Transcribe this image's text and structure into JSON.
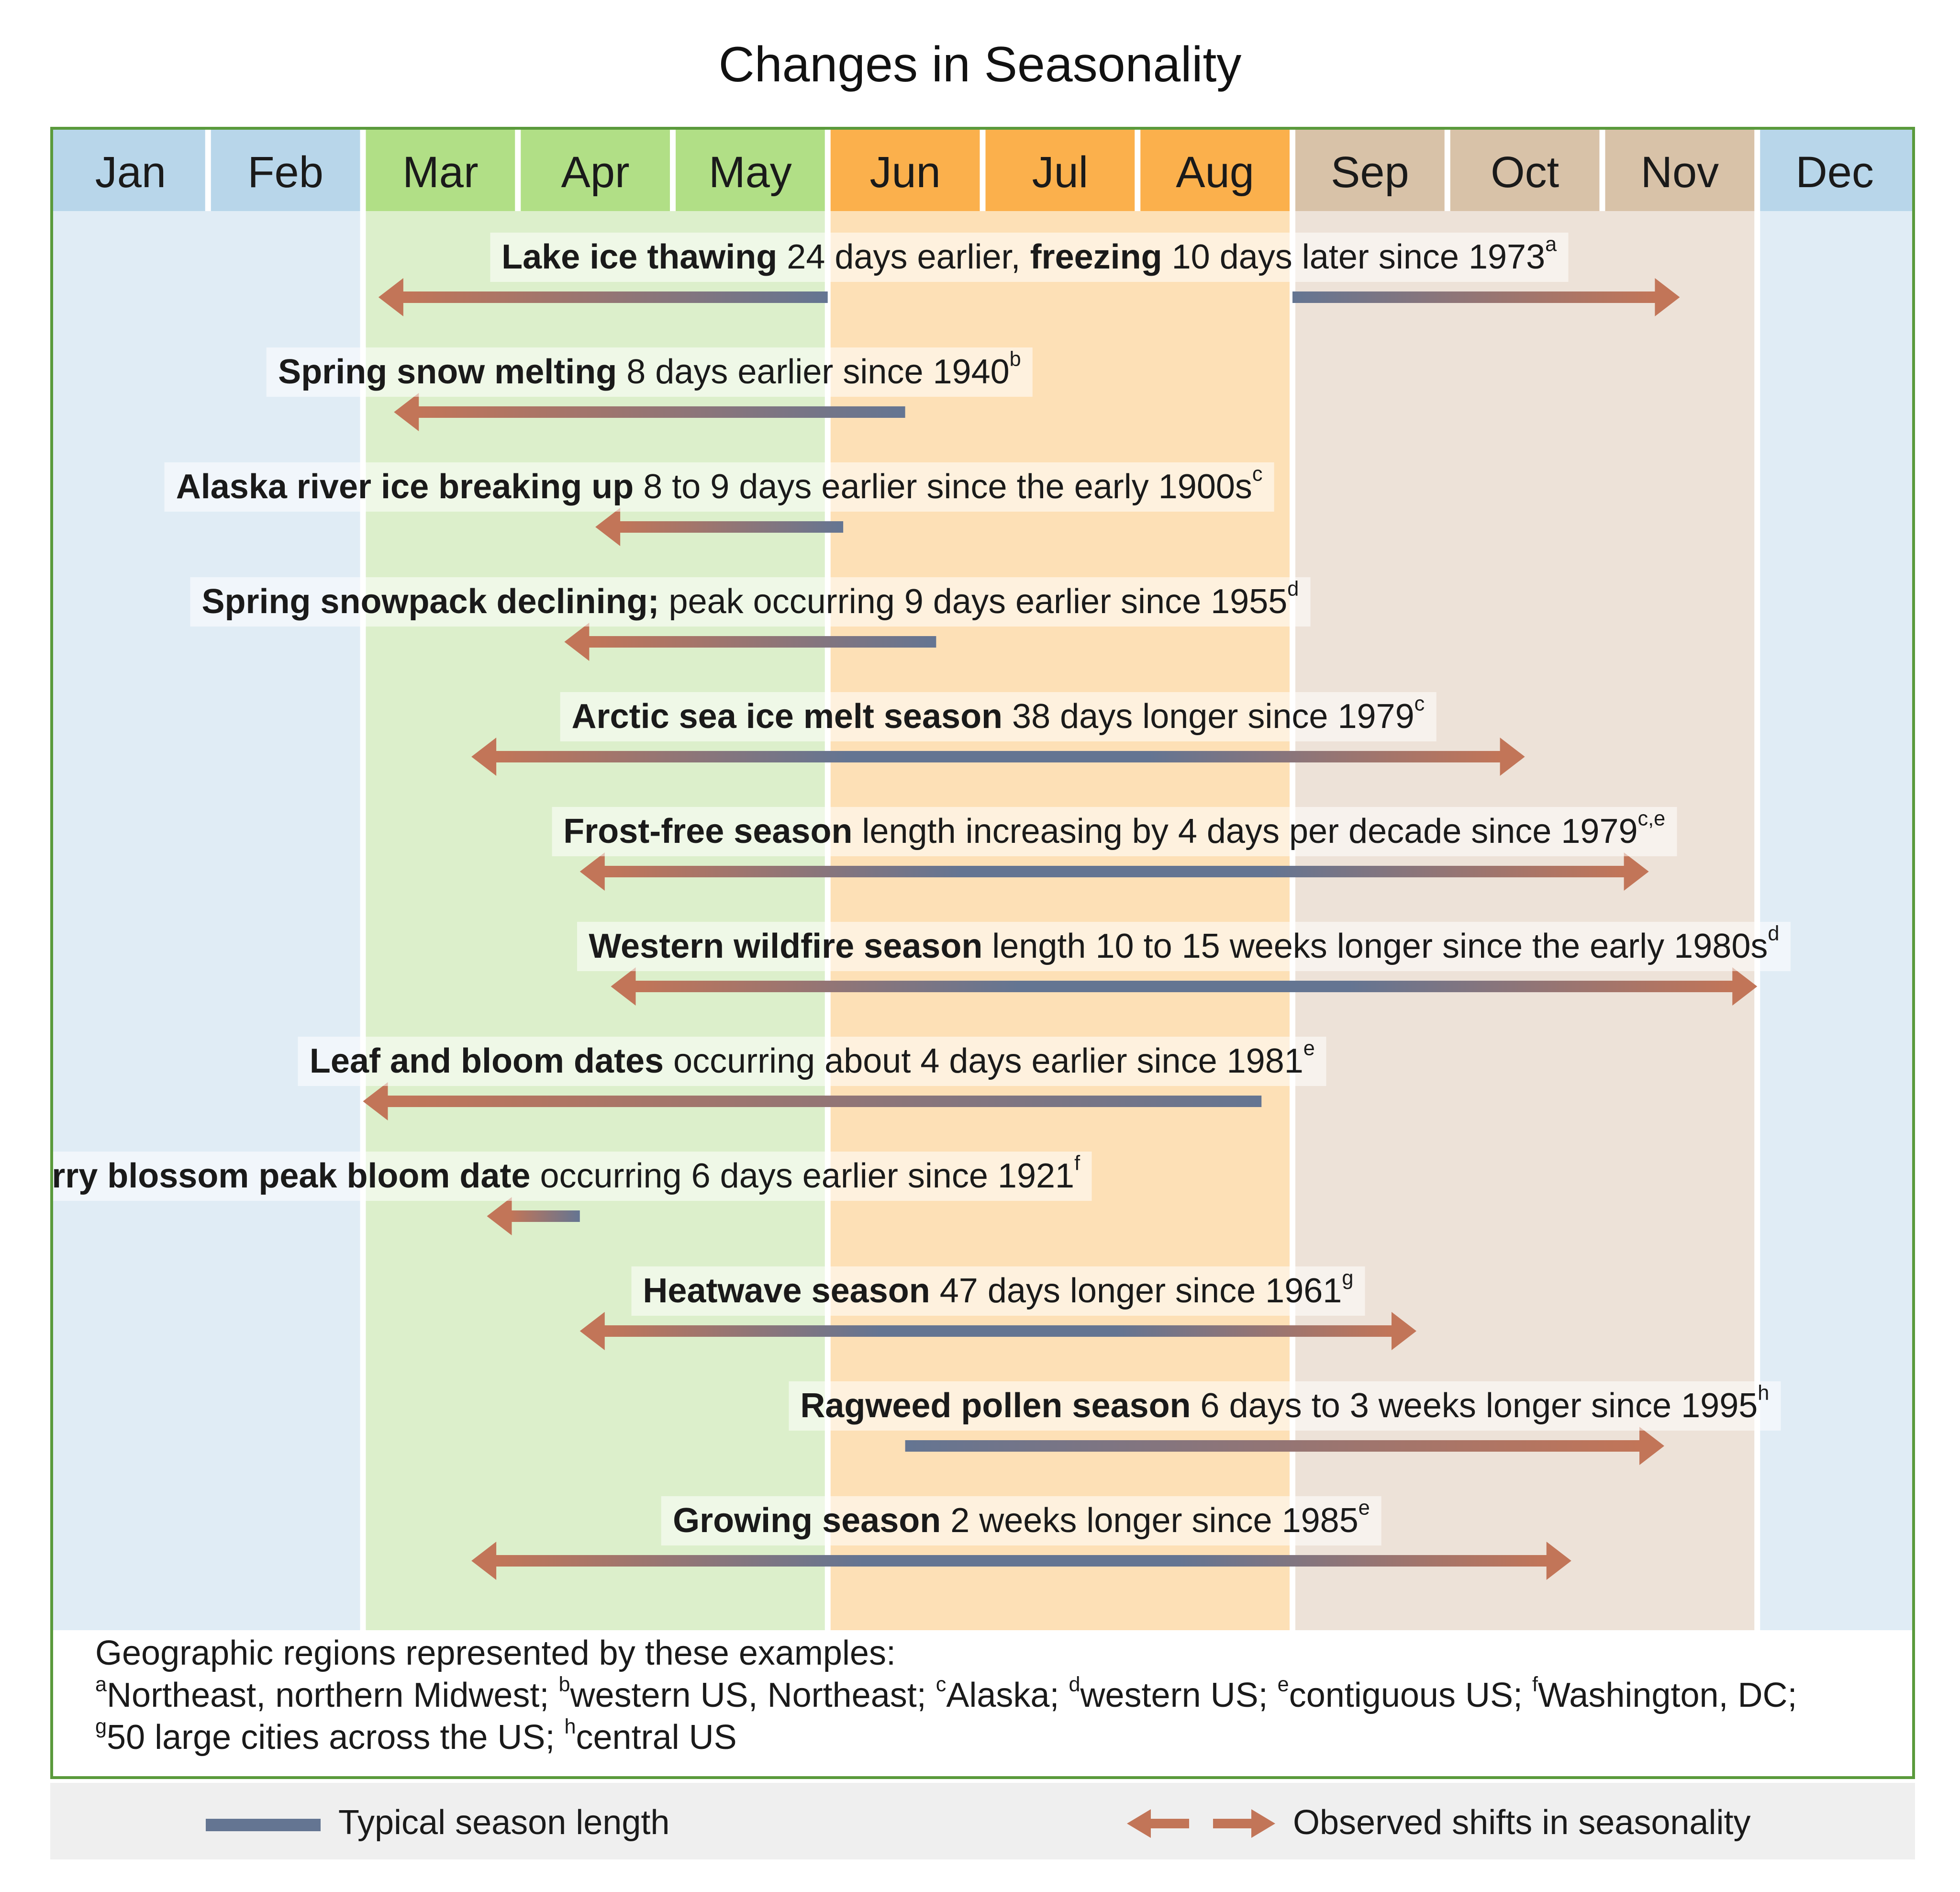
{
  "title": "Changes in Seasonality",
  "months": [
    {
      "name": "Jan",
      "season": "winter"
    },
    {
      "name": "Feb",
      "season": "winter"
    },
    {
      "name": "Mar",
      "season": "spring"
    },
    {
      "name": "Apr",
      "season": "spring"
    },
    {
      "name": "May",
      "season": "spring"
    },
    {
      "name": "Jun",
      "season": "summer"
    },
    {
      "name": "Jul",
      "season": "summer"
    },
    {
      "name": "Aug",
      "season": "summer"
    },
    {
      "name": "Sep",
      "season": "fall"
    },
    {
      "name": "Oct",
      "season": "fall"
    },
    {
      "name": "Nov",
      "season": "fall"
    },
    {
      "name": "Dec",
      "season": "winter"
    }
  ],
  "colors": {
    "frame": "#5a9a3c",
    "winter_header": "#b8d6ea",
    "winter_band": "#e0ecf5",
    "spring_header": "#b1df86",
    "spring_band": "#dcefcb",
    "summer_header": "#fbb04c",
    "summer_band": "#fde0b6",
    "fall_header": "#d8c2a8",
    "fall_band": "#ede2d8",
    "typical": "#647592",
    "shift": "#c27558"
  },
  "rows": [
    {
      "bold": "Lake ice thawing",
      "text": " 24 days earlier, ",
      "bold2": "freezing",
      "text2": " 10 days later since 1973",
      "sup": "a",
      "segments": [
        {
          "from": 2.1,
          "to": 5.0,
          "head": "left"
        },
        {
          "from": 8.0,
          "to": 10.5,
          "head": "right"
        }
      ]
    },
    {
      "bold": "Spring snow melting",
      "text": " 8 days earlier since 1940",
      "sup": "b",
      "segments": [
        {
          "from": 2.2,
          "to": 5.5,
          "head": "left"
        }
      ]
    },
    {
      "bold": "Alaska river ice breaking up",
      "text": " 8 to 9 days earlier since the early 1900s",
      "sup": "c",
      "segments": [
        {
          "from": 3.5,
          "to": 5.1,
          "head": "left"
        }
      ]
    },
    {
      "bold": "Spring snowpack declining;",
      "text": " peak occurring 9 days earlier since 1955",
      "sup": "d",
      "segments": [
        {
          "from": 3.3,
          "to": 5.7,
          "head": "left"
        }
      ]
    },
    {
      "bold": "Arctic sea ice melt season",
      "text": " 38 days longer since 1979",
      "sup": "c",
      "segments": [
        {
          "from": 2.7,
          "to": 9.5,
          "head": "both"
        }
      ]
    },
    {
      "bold": "Frost-free season",
      "text": " length increasing by 4 days per decade since 1979",
      "sup": "c,e",
      "segments": [
        {
          "from": 3.4,
          "to": 10.3,
          "head": "both"
        }
      ]
    },
    {
      "bold": "Western wildfire season",
      "text": " length 10 to 15 weeks longer since the early 1980s",
      "sup": "d",
      "segments": [
        {
          "from": 3.6,
          "to": 11.0,
          "head": "both"
        }
      ]
    },
    {
      "bold": "Leaf and bloom dates",
      "text": " occurring about 4 days earlier since 1981",
      "sup": "e",
      "segments": [
        {
          "from": 2.0,
          "to": 7.8,
          "head": "left"
        }
      ]
    },
    {
      "bold": "Cherry blossom peak bloom date",
      "text": " occurring 6 days earlier since 1921",
      "sup": "f",
      "segments": [
        {
          "from": 2.8,
          "to": 3.4,
          "head": "left"
        }
      ]
    },
    {
      "bold": "Heatwave season",
      "text": " 47 days longer since 1961",
      "sup": "g",
      "segments": [
        {
          "from": 3.4,
          "to": 8.8,
          "head": "both"
        }
      ]
    },
    {
      "bold": "Ragweed pollen season",
      "text": " 6 days to 3 weeks longer since 1995",
      "sup": "h",
      "segments": [
        {
          "from": 5.5,
          "to": 10.4,
          "head": "right"
        }
      ]
    },
    {
      "bold": "Growing season",
      "text": " 2 weeks longer since 1985",
      "sup": "e",
      "segments": [
        {
          "from": 2.7,
          "to": 9.8,
          "head": "both"
        }
      ]
    }
  ],
  "footer": {
    "heading": "Geographic regions represented by these examples:",
    "notes": [
      {
        "sup": "a",
        "text": "Northeast, northern Midwest; "
      },
      {
        "sup": "b",
        "text": "western US, Northeast; "
      },
      {
        "sup": "c",
        "text": "Alaska; "
      },
      {
        "sup": "d",
        "text": "western US; "
      },
      {
        "sup": "e",
        "text": "contiguous US; "
      },
      {
        "sup": "f",
        "text": "Washington, DC;"
      },
      {
        "sup": "g",
        "text": "50 large cities across the US; "
      },
      {
        "sup": "h",
        "text": "central US"
      }
    ]
  },
  "legend": {
    "typical_label": "Typical season length",
    "shift_label": "Observed shifts in seasonality"
  }
}
